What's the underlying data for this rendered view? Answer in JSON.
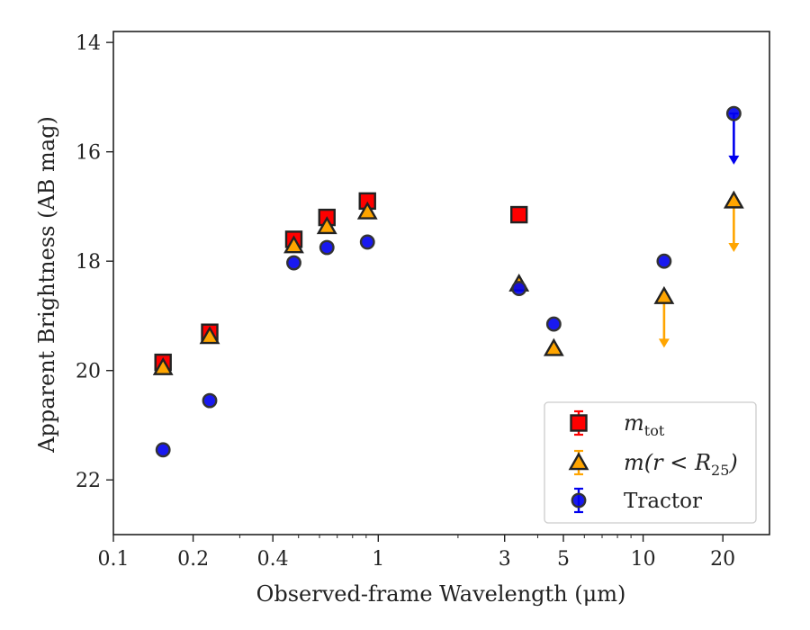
{
  "chart_data": {
    "type": "scatter",
    "title": "",
    "xlabel": "Observed-frame Wavelength (μm)",
    "ylabel": "Apparent Brightness (AB mag)",
    "xscale": "log",
    "xlim": [
      0.1,
      30
    ],
    "ylim": [
      23,
      13.8
    ],
    "y_inverted": true,
    "x_ticks": [
      0.1,
      0.2,
      0.4,
      1,
      3,
      5,
      10,
      20
    ],
    "x_tick_labels": [
      "0.1",
      "0.2",
      "0.4",
      "1",
      "3",
      "5",
      "10",
      "20"
    ],
    "y_ticks": [
      14,
      16,
      18,
      20,
      22
    ],
    "y_tick_labels": [
      "14",
      "16",
      "18",
      "20",
      "22"
    ],
    "grid": false,
    "legend_position": "lower-right",
    "series": [
      {
        "name": "m_tot",
        "legend_main": "m",
        "legend_sub": "tot",
        "marker": "square",
        "color": "#ff0000",
        "edge_color": "#222222",
        "points": [
          {
            "x": 0.154,
            "y": 19.85
          },
          {
            "x": 0.231,
            "y": 19.3
          },
          {
            "x": 0.48,
            "y": 17.6
          },
          {
            "x": 0.64,
            "y": 17.2
          },
          {
            "x": 0.91,
            "y": 16.9
          },
          {
            "x": 3.4,
            "y": 17.15
          }
        ],
        "upper_limits": []
      },
      {
        "name": "m(r < R25)",
        "legend_main": "m(r < R",
        "legend_sub": "25",
        "legend_end": ")",
        "marker": "triangle",
        "color": "#ffa500",
        "edge_color": "#222222",
        "points": [
          {
            "x": 0.154,
            "y": 19.95
          },
          {
            "x": 0.231,
            "y": 19.38
          },
          {
            "x": 0.48,
            "y": 17.72
          },
          {
            "x": 0.64,
            "y": 17.37
          },
          {
            "x": 0.91,
            "y": 17.1
          },
          {
            "x": 3.4,
            "y": 18.42
          },
          {
            "x": 4.6,
            "y": 19.6
          }
        ],
        "upper_limits": [
          {
            "x": 12.0,
            "y": 18.65,
            "arrow_to": 19.55
          },
          {
            "x": 22.0,
            "y": 16.9,
            "arrow_to": 17.8
          }
        ]
      },
      {
        "name": "Tractor",
        "legend_main": "Tractor",
        "marker": "circle",
        "color": "#0000ee",
        "edge_color": "#333333",
        "points": [
          {
            "x": 0.154,
            "y": 21.45
          },
          {
            "x": 0.231,
            "y": 20.55
          },
          {
            "x": 0.48,
            "y": 18.03
          },
          {
            "x": 0.64,
            "y": 17.75
          },
          {
            "x": 0.91,
            "y": 17.65
          },
          {
            "x": 3.4,
            "y": 18.5
          },
          {
            "x": 4.6,
            "y": 19.15
          },
          {
            "x": 12.0,
            "y": 18.0
          }
        ],
        "upper_limits": [
          {
            "x": 22.0,
            "y": 15.3,
            "arrow_to": 16.2
          }
        ]
      }
    ]
  }
}
